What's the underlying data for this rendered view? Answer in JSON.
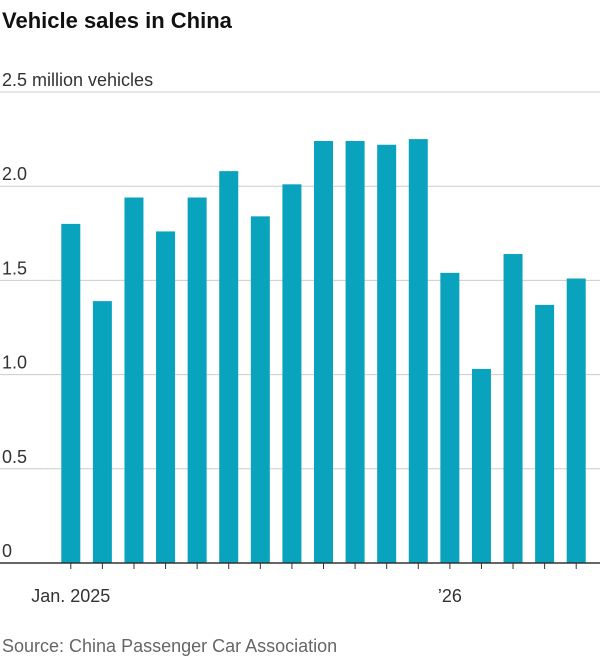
{
  "chart_data": {
    "type": "bar",
    "title": "Vehicle sales in China",
    "categories": [
      "Jan. 2025",
      null,
      null,
      null,
      null,
      null,
      null,
      null,
      null,
      null,
      null,
      null,
      "’26",
      null,
      null,
      null,
      null
    ],
    "values": [
      1.8,
      1.39,
      1.94,
      1.76,
      1.94,
      2.08,
      1.84,
      2.01,
      2.24,
      2.24,
      2.22,
      2.25,
      1.54,
      1.03,
      1.64,
      1.37,
      1.51
    ],
    "color": "#0aa3bd",
    "ylim": [
      0,
      2.5
    ],
    "yticks": [
      0,
      0.5,
      {
        "value": 1,
        "label": "1.0"
      },
      1.5,
      {
        "value": 2,
        "label": "2.0"
      },
      {
        "value": 2.5,
        "label": "2.5 million vehicles"
      }
    ],
    "grid": true,
    "source": "Source: China Passenger Car Association"
  }
}
